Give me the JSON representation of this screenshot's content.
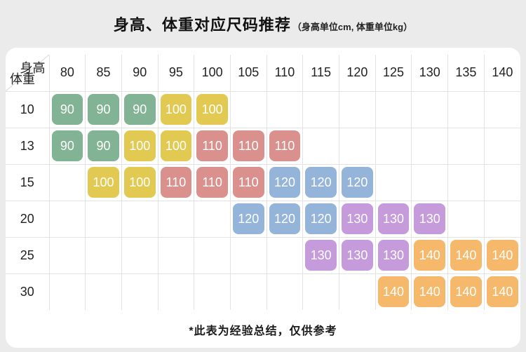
{
  "chart_data": {
    "type": "table",
    "title": "身高、体重对应尺码推荐",
    "subtitle": "（身高单位cm, 体重单位kg）",
    "col_header_label": "身高",
    "row_header_label": "体重",
    "columns": [
      "80",
      "85",
      "90",
      "95",
      "100",
      "105",
      "110",
      "115",
      "120",
      "125",
      "130",
      "135",
      "140"
    ],
    "rows": [
      {
        "weight": "10",
        "sizes": [
          "90",
          "90",
          "90",
          "100",
          "100",
          null,
          null,
          null,
          null,
          null,
          null,
          null,
          null
        ]
      },
      {
        "weight": "13",
        "sizes": [
          "90",
          "90",
          "100",
          "100",
          "110",
          "110",
          "110",
          null,
          null,
          null,
          null,
          null,
          null
        ]
      },
      {
        "weight": "15",
        "sizes": [
          null,
          "100",
          "100",
          "110",
          "110",
          "110",
          "120",
          "120",
          "120",
          null,
          null,
          null,
          null
        ]
      },
      {
        "weight": "20",
        "sizes": [
          null,
          null,
          null,
          null,
          null,
          "120",
          "120",
          "120",
          "130",
          "130",
          "130",
          null,
          null
        ]
      },
      {
        "weight": "25",
        "sizes": [
          null,
          null,
          null,
          null,
          null,
          null,
          null,
          "130",
          "130",
          "130",
          "140",
          "140",
          "140"
        ]
      },
      {
        "weight": "30",
        "sizes": [
          null,
          null,
          null,
          null,
          null,
          null,
          null,
          null,
          null,
          "140",
          "140",
          "140",
          "140"
        ]
      }
    ],
    "size_colors": {
      "90": "#82b394",
      "100": "#e2ca52",
      "110": "#da918e",
      "120": "#95b4da",
      "130": "#c59bdc",
      "140": "#f6b96b"
    },
    "note": "*此表为经验总结，仅供参考"
  },
  "layout_colors": {
    "page_bg": "#ebebeb",
    "card_bg": "#ffffff",
    "grid_line": "#e3e3e3",
    "badge_text": "#ffffff"
  }
}
